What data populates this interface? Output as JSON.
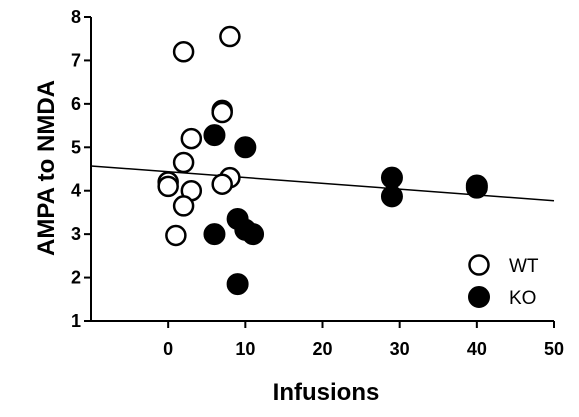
{
  "chart_data": {
    "type": "scatter",
    "title": "",
    "xlabel": "Infusions",
    "ylabel": "AMPA to NMDA",
    "xlim": [
      -10,
      50
    ],
    "ylim": [
      1,
      8
    ],
    "xticks": [
      0,
      10,
      20,
      30,
      40,
      50
    ],
    "yticks": [
      1,
      2,
      3,
      4,
      5,
      6,
      7,
      8
    ],
    "grid": false,
    "legend": "bottom-right",
    "series": [
      {
        "name": "WT",
        "marker": "open-circle",
        "color": "#000000",
        "points": [
          {
            "x": 2,
            "y": 7.2
          },
          {
            "x": 8,
            "y": 7.55
          },
          {
            "x": 7,
            "y": 5.85
          },
          {
            "x": 7,
            "y": 5.8
          },
          {
            "x": 3,
            "y": 5.2
          },
          {
            "x": 2,
            "y": 4.65
          },
          {
            "x": 0,
            "y": 4.2
          },
          {
            "x": 0,
            "y": 4.1
          },
          {
            "x": 3,
            "y": 4.0
          },
          {
            "x": 8,
            "y": 4.3
          },
          {
            "x": 7,
            "y": 4.15
          },
          {
            "x": 2,
            "y": 3.65
          },
          {
            "x": 1,
            "y": 2.97
          }
        ]
      },
      {
        "name": "KO",
        "marker": "filled-circle",
        "color": "#000000",
        "points": [
          {
            "x": 6,
            "y": 5.28
          },
          {
            "x": 10,
            "y": 5.0
          },
          {
            "x": 9,
            "y": 3.35
          },
          {
            "x": 10,
            "y": 3.1
          },
          {
            "x": 11,
            "y": 3.0
          },
          {
            "x": 6,
            "y": 3.0
          },
          {
            "x": 9,
            "y": 1.85
          },
          {
            "x": 29,
            "y": 4.3
          },
          {
            "x": 29,
            "y": 3.87
          },
          {
            "x": 40,
            "y": 4.12
          },
          {
            "x": 40,
            "y": 4.07
          }
        ]
      }
    ],
    "trendline": {
      "x": [
        -10,
        50
      ],
      "y": [
        4.57,
        3.77
      ]
    }
  }
}
